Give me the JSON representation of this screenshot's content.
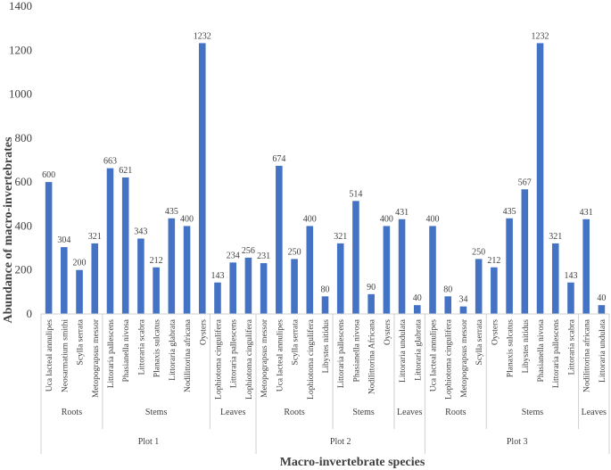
{
  "chart_data": {
    "type": "bar",
    "ylabel": "Abundance of macro-invertebrates",
    "xlabel": "Macro-invertebrate species",
    "ylim": [
      0,
      1400
    ],
    "yticks": [
      0,
      200,
      400,
      600,
      800,
      1000,
      1200,
      1400
    ],
    "bar_color": "#4472c4",
    "grid": false,
    "legend": "none",
    "groups": [
      {
        "name": "Plot 1",
        "subgroups": [
          {
            "name": "Roots",
            "categories": [
              "Uca lacteal annulipes",
              "Neosarmatium smithi",
              "Scylla serrata",
              "Metopograpsus messor"
            ],
            "values": [
              600,
              304,
              200,
              321
            ]
          },
          {
            "name": "Stems",
            "categories": [
              "Littoraria pallescens",
              "Phasianella nivosa",
              "Littoraria scabra",
              "Planaxis sulcatus",
              "Littoraria glabrata",
              "Nodilittorina africana",
              "Oysters"
            ],
            "values": [
              663,
              621,
              343,
              212,
              435,
              400,
              1232
            ]
          },
          {
            "name": "Leaves",
            "categories": [
              "Lophiotoma cingulifera",
              "Littoraria pallescens",
              "Lophiotoma cingulifera"
            ],
            "values": [
              143,
              234,
              256
            ]
          }
        ]
      },
      {
        "name": "Plot 2",
        "subgroups": [
          {
            "name": "Roots",
            "categories": [
              "Metopograpsus messor",
              "Uca lacteal annulipes",
              "Scylla serrata",
              "Lophiotoma cingulifera",
              "Libystes nitidus"
            ],
            "values": [
              231,
              674,
              250,
              400,
              80
            ]
          },
          {
            "name": "Stems",
            "categories": [
              "Littoraria pallescens",
              "Phasianella nivosa",
              "Nodilittorina Africana",
              "Oysters"
            ],
            "values": [
              321,
              514,
              90,
              400
            ]
          },
          {
            "name": "Leaves",
            "categories": [
              "Littoraria undulata",
              "Littoraria glabrata"
            ],
            "values": [
              431,
              40
            ]
          }
        ]
      },
      {
        "name": "Plot 3",
        "subgroups": [
          {
            "name": "Roots",
            "categories": [
              "Uca lacteal annulipes",
              "Lophiotoma cingulifera",
              "Metopograpsus messor",
              "Scylla serrata"
            ],
            "values": [
              400,
              80,
              34,
              250
            ]
          },
          {
            "name": "Stems",
            "categories": [
              "Oysters",
              "Planaxis sulcatus",
              "Libystes nitidus",
              "Phasianella nivosa",
              "Littoraria pallescens",
              "Littoraria scabra"
            ],
            "values": [
              212,
              435,
              567,
              1232,
              321,
              143
            ]
          },
          {
            "name": "Leaves",
            "categories": [
              "Nodilittorina africana",
              "Littoraria undulata"
            ],
            "values": [
              431,
              40
            ]
          }
        ]
      }
    ]
  }
}
